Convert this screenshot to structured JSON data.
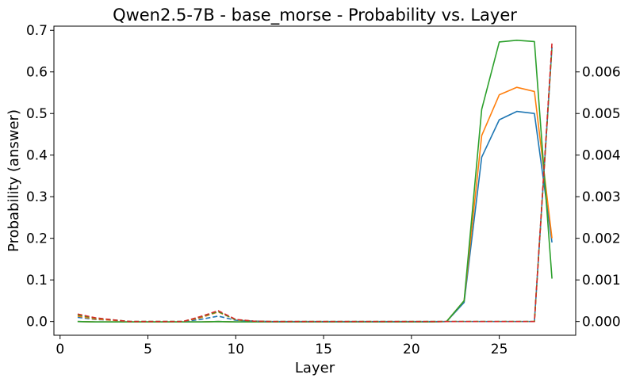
{
  "chart_data": {
    "type": "line",
    "title": "Qwen2.5-7B - base_morse - Probability vs. Layer",
    "xlabel": "Layer",
    "ylabel": "Probability (answer)",
    "xlim": [
      -0.35,
      29.35
    ],
    "ylim": [
      -0.033,
      0.71
    ],
    "y2lim": [
      -0.00033,
      0.0071
    ],
    "xticks": [
      0,
      5,
      10,
      15,
      20,
      25
    ],
    "yticks": [
      0.0,
      0.1,
      0.2,
      0.3,
      0.4,
      0.5,
      0.6,
      0.7
    ],
    "y2ticks": [
      0.0,
      0.001,
      0.002,
      0.003,
      0.004,
      0.005,
      0.006
    ],
    "xtick_labels": [
      "0",
      "5",
      "10",
      "15",
      "20",
      "25"
    ],
    "ytick_labels": [
      "0.0",
      "0.1",
      "0.2",
      "0.3",
      "0.4",
      "0.5",
      "0.6",
      "0.7"
    ],
    "y2tick_labels": [
      "0.000",
      "0.001",
      "0.002",
      "0.003",
      "0.004",
      "0.005",
      "0.006"
    ],
    "x": [
      1,
      2,
      3,
      4,
      5,
      6,
      7,
      8,
      9,
      10,
      11,
      12,
      13,
      14,
      15,
      16,
      17,
      18,
      19,
      20,
      21,
      22,
      23,
      24,
      25,
      26,
      27,
      28
    ],
    "series": [
      {
        "axis": "left",
        "style": "solid",
        "color": "#1f77b4",
        "values": [
          0.0,
          -0.001,
          -0.001,
          -0.001,
          -0.001,
          -0.001,
          -0.001,
          -0.001,
          0.0,
          -0.001,
          -0.001,
          -0.001,
          -0.001,
          -0.001,
          -0.001,
          -0.001,
          -0.001,
          -0.001,
          -0.001,
          -0.001,
          -0.001,
          0.0,
          0.046,
          0.395,
          0.485,
          0.505,
          0.5,
          0.19
        ]
      },
      {
        "axis": "left",
        "style": "solid",
        "color": "#ff7f0e",
        "values": [
          0.0,
          -0.001,
          -0.001,
          -0.001,
          -0.001,
          -0.001,
          -0.001,
          -0.001,
          0.0,
          -0.001,
          -0.001,
          -0.001,
          -0.001,
          -0.001,
          -0.001,
          -0.001,
          -0.001,
          -0.001,
          -0.001,
          -0.001,
          -0.001,
          0.0,
          0.05,
          0.447,
          0.545,
          0.563,
          0.553,
          0.2
        ]
      },
      {
        "axis": "left",
        "style": "solid",
        "color": "#2ca02c",
        "values": [
          0.0,
          -0.001,
          -0.001,
          -0.001,
          -0.001,
          -0.001,
          -0.001,
          -0.001,
          0.0,
          -0.001,
          -0.001,
          -0.001,
          -0.001,
          -0.001,
          -0.001,
          -0.001,
          -0.001,
          -0.001,
          -0.001,
          -0.001,
          -0.001,
          0.0,
          0.05,
          0.51,
          0.672,
          0.676,
          0.673,
          0.103
        ]
      },
      {
        "axis": "right",
        "style": "dashed",
        "color": "#1f77b4",
        "values": [
          0.0001,
          5e-05,
          3e-05,
          0.0,
          0.0,
          0.0,
          0.0,
          5e-05,
          0.00013,
          3e-05,
          1e-05,
          0.0,
          0.0,
          0.0,
          0.0,
          0.0,
          0.0,
          0.0,
          0.0,
          0.0,
          0.0,
          0.0,
          0.0,
          0.0,
          0.0,
          0.0,
          0.0,
          0.0066
        ]
      },
      {
        "axis": "right",
        "style": "dashed",
        "color": "#ff7f0e",
        "values": [
          0.00013,
          6e-05,
          3e-05,
          0.0,
          0.0,
          0.0,
          0.0,
          9e-05,
          0.00023,
          4e-05,
          1e-05,
          0.0,
          0.0,
          0.0,
          0.0,
          0.0,
          0.0,
          0.0,
          0.0,
          0.0,
          0.0,
          0.0,
          0.0,
          0.0,
          0.0,
          0.0,
          0.0,
          0.0066
        ]
      },
      {
        "axis": "right",
        "style": "dashed",
        "color": "#2ca02c",
        "values": [
          0.00016,
          8e-05,
          4e-05,
          0.0,
          0.0,
          0.0,
          0.0,
          0.00011,
          0.00024,
          4e-05,
          1e-05,
          0.0,
          0.0,
          0.0,
          0.0,
          0.0,
          0.0,
          0.0,
          0.0,
          0.0,
          0.0,
          0.0,
          0.0,
          0.0,
          0.0,
          0.0,
          0.0,
          0.0066
        ]
      },
      {
        "axis": "right",
        "style": "dashed",
        "color": "#d62728",
        "values": [
          0.00018,
          9e-05,
          4e-05,
          0.0,
          0.0,
          0.0,
          0.0,
          0.00012,
          0.00026,
          5e-05,
          1e-05,
          0.0,
          0.0,
          0.0,
          0.0,
          0.0,
          0.0,
          0.0,
          0.0,
          0.0,
          0.0,
          0.0,
          0.0,
          0.0,
          0.0,
          0.0,
          0.0,
          0.0067
        ]
      }
    ]
  }
}
